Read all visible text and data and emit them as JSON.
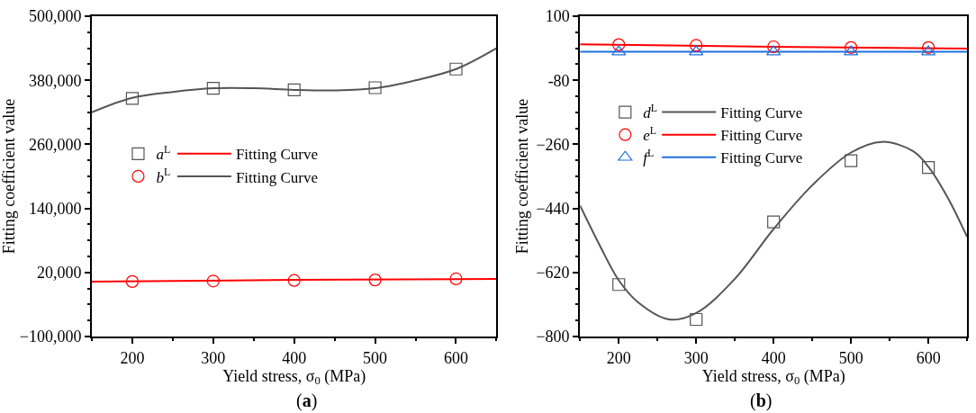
{
  "chart_data": [
    {
      "type": "scatter",
      "xlabel": "Yield stress, σ$_{0}$ (MPa)",
      "ylabel": "Fitting coefficient value",
      "annotations": [
        "(a)"
      ],
      "xlim": [
        150,
        650
      ],
      "xticks": [
        200,
        300,
        400,
        500,
        600
      ],
      "ylim": [
        -100000,
        500000
      ],
      "yticks": [
        {
          "value": -100000,
          "label": "−100,000"
        },
        {
          "value": 20000,
          "label": "20,000"
        },
        {
          "value": 140000,
          "label": "140,000"
        },
        {
          "value": 260000,
          "label": "260,000"
        },
        {
          "value": 380000,
          "label": "380,000"
        },
        {
          "value": 500000,
          "label": "500,000"
        }
      ],
      "legend": "left",
      "series": [
        {
          "name": "a$^{L}$",
          "marker": "square",
          "color": "#555555",
          "x": [
            200,
            300,
            400,
            500,
            600
          ],
          "values": [
            346000,
            365000,
            362000,
            366000,
            401000
          ]
        },
        {
          "name": "b$^{L}$",
          "marker": "circle",
          "color": "#ff0000",
          "x": [
            200,
            300,
            400,
            500,
            600
          ],
          "values": [
            3000,
            4000,
            5000,
            6000,
            8000
          ]
        },
        {
          "name": "Fitting Curve",
          "type": "line",
          "color": "#ff0000",
          "x": [
            150,
            400,
            650
          ],
          "values": [
            3000,
            6000,
            8000
          ]
        },
        {
          "name": "Fitting Curve",
          "type": "line",
          "color": "#555555",
          "x": [
            150,
            200,
            250,
            300,
            350,
            400,
            450,
            500,
            550,
            600,
            650
          ],
          "values": [
            320000,
            347000,
            358000,
            365000,
            365000,
            362000,
            361000,
            365000,
            380000,
            401000,
            440000
          ]
        }
      ]
    },
    {
      "type": "scatter",
      "xlabel": "Yield stress, σ$_{0}$ (MPa)",
      "ylabel": "Fitting coefficient value",
      "annotations": [
        "(b)"
      ],
      "xlim": [
        150,
        650
      ],
      "xticks": [
        200,
        300,
        400,
        500,
        600
      ],
      "ylim": [
        -800,
        100
      ],
      "yticks": [
        {
          "value": -800,
          "label": "−800"
        },
        {
          "value": -620,
          "label": "−620"
        },
        {
          "value": -440,
          "label": "−440"
        },
        {
          "value": -260,
          "label": "−260"
        },
        -80,
        100
      ],
      "legend": "top left",
      "series": [
        {
          "name": "d$^{L}$",
          "marker": "square",
          "color": "#555555",
          "x": [
            200,
            300,
            400,
            500,
            600
          ],
          "values": [
            -654,
            -752,
            -478,
            -306,
            -325
          ]
        },
        {
          "name": "e$^{L}$",
          "marker": "circle",
          "color": "#ff0000",
          "x": [
            200,
            300,
            400,
            500,
            600
          ],
          "values": [
            20,
            18,
            14,
            12,
            12
          ]
        },
        {
          "name": "f$^{L}$",
          "marker": "triangle",
          "color": "#1f6fe0",
          "x": [
            200,
            300,
            400,
            500,
            600
          ],
          "values": [
            0,
            0,
            0,
            0,
            0
          ]
        },
        {
          "name": "Fitting Curve",
          "type": "line",
          "color": "#555555",
          "x": [
            150,
            175,
            200,
            225,
            265,
            300,
            350,
            400,
            450,
            500,
            540,
            580,
            600,
            625,
            650
          ],
          "values": [
            -432,
            -542,
            -642,
            -704,
            -752,
            -734,
            -638,
            -498,
            -375,
            -283,
            -253,
            -279,
            -323,
            -410,
            -520
          ]
        },
        {
          "name": "Fitting Curve",
          "type": "line",
          "color": "#ff0000",
          "x": [
            150,
            400,
            650
          ],
          "values": [
            21,
            14,
            9
          ]
        },
        {
          "name": "Fitting Curve",
          "type": "line",
          "color": "#1f6fe0",
          "x": [
            150,
            650
          ],
          "values": [
            0,
            0
          ]
        }
      ]
    }
  ]
}
